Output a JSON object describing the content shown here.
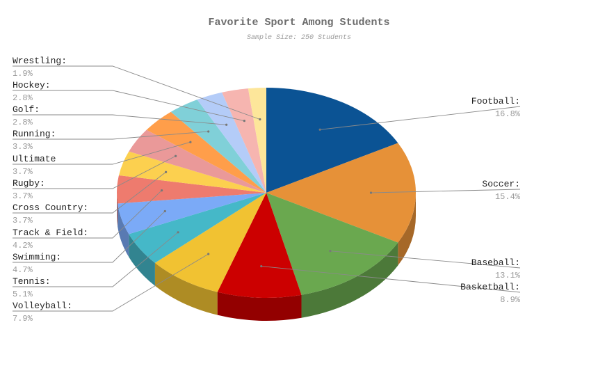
{
  "chart_data": {
    "type": "pie",
    "style": "3d",
    "title": "Favorite Sport Among Students",
    "subtitle": "Sample Size: 250 Students",
    "slices": [
      {
        "label": "Football:",
        "value": 16.8,
        "display": "16.8%",
        "color": "#0b5394"
      },
      {
        "label": "Soccer:",
        "value": 15.4,
        "display": "15.4%",
        "color": "#e69138"
      },
      {
        "label": "Baseball:",
        "value": 13.1,
        "display": "13.1%",
        "color": "#6aa84f"
      },
      {
        "label": "Basketball:",
        "value": 8.9,
        "display": "8.9%",
        "color": "#cc0000"
      },
      {
        "label": "Volleyball:",
        "value": 7.9,
        "display": "7.9%",
        "color": "#f1c232"
      },
      {
        "label": "Tennis:",
        "value": 5.1,
        "display": "5.1%",
        "color": "#45b8c8"
      },
      {
        "label": "Swimming:",
        "value": 4.7,
        "display": "4.7%",
        "color": "#7baaf7"
      },
      {
        "label": "Track & Field:",
        "value": 4.2,
        "display": "4.2%",
        "color": "#ee7b6e"
      },
      {
        "label": "Cross Country:",
        "value": 3.7,
        "display": "3.7%",
        "color": "#fcd04f"
      },
      {
        "label": "Rugby:",
        "value": 3.7,
        "display": "3.7%",
        "color": "#ea9999"
      },
      {
        "label": "Ultimate",
        "value": 3.7,
        "display": "3.7%",
        "color": "#ff9e4a"
      },
      {
        "label": "Running:",
        "value": 3.3,
        "display": "3.3%",
        "color": "#80d0d8"
      },
      {
        "label": "Golf:",
        "value": 2.8,
        "display": "2.8%",
        "color": "#b4ccf8"
      },
      {
        "label": "Hockey:",
        "value": 2.8,
        "display": "2.8%",
        "color": "#f6b5b0"
      },
      {
        "label": "Wrestling:",
        "value": 1.9,
        "display": "1.9%",
        "color": "#fde69a"
      }
    ]
  }
}
